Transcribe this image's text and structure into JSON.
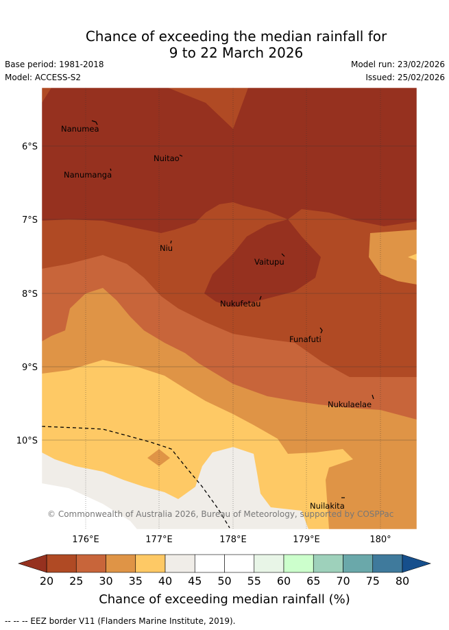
{
  "title_line1": "Chance of exceeding the median rainfall for",
  "title_line2": "9 to 22 March 2026",
  "base_period": "Base period: 1981-2018",
  "model": "Model: ACCESS-S2",
  "model_run": "Model run: 23/02/2026",
  "issued": "Issued: 25/02/2026",
  "copyright": "© Commonwealth of Australia 2026, Bureau of Meteorology, supported by COSPPac",
  "lat_labels": [
    "6°S",
    "7°S",
    "8°S",
    "9°S",
    "10°S"
  ],
  "lon_labels": [
    "176°E",
    "177°E",
    "178°E",
    "179°E",
    "180°"
  ],
  "places": [
    "Nanumea",
    "Nuitao",
    "Nanumanga",
    "Niu",
    "Vaitupu",
    "Nukufetau",
    "Funafuti",
    "Nukulaelae",
    "Nuilakita"
  ],
  "colorbar": {
    "title": "Chance of exceeding median rainfall (%)",
    "ticks": [
      "20",
      "25",
      "30",
      "35",
      "40",
      "45",
      "50",
      "55",
      "60",
      "65",
      "70",
      "75",
      "80"
    ],
    "colors": [
      "#b04a24",
      "#c8653a",
      "#df9446",
      "#fec965",
      "#f0ede8",
      "#ffffff",
      "#ffffff",
      "#e8f5e7",
      "#ccffcc",
      "#9ed1bb",
      "#6aa8aa",
      "#3f7a9c"
    ],
    "under_color": "#96311f",
    "over_color": "#164f8c"
  },
  "footer": "-- -- -- EEZ border V11 (Flanders Marine Institute, 2019)."
}
